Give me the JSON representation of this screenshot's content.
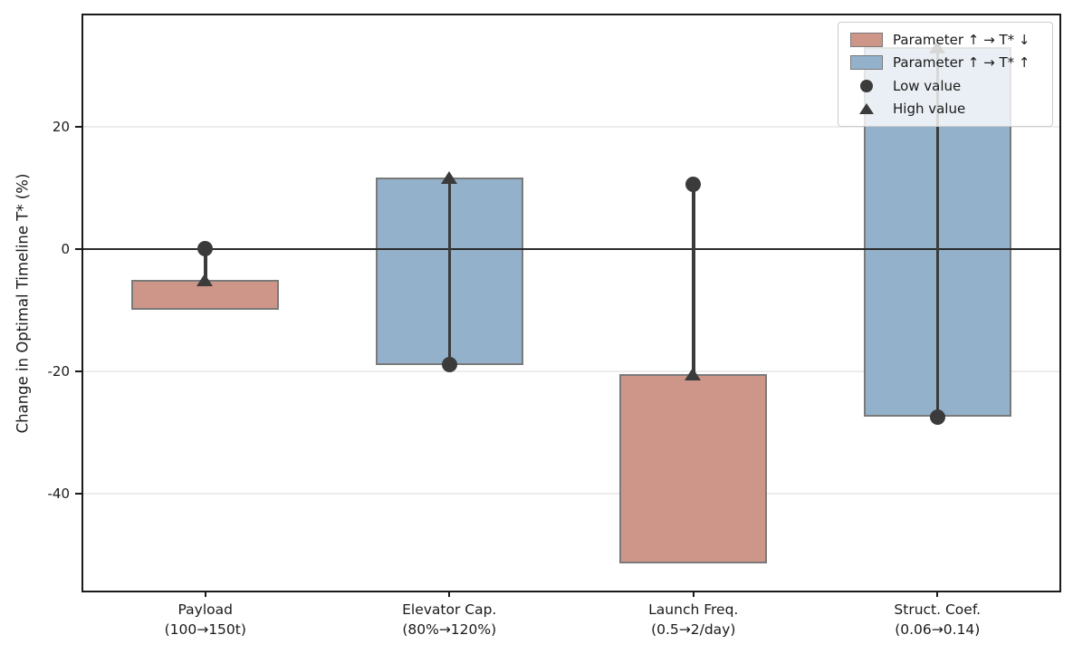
{
  "chart_data": {
    "type": "bar",
    "title": "",
    "ylabel": "Change in Optimal Timeline T* (%)",
    "ylim": [
      -55.9,
      38.2
    ],
    "yticks": [
      20,
      0,
      -20,
      -40
    ],
    "grid": "horizontal-light",
    "zero_line": true,
    "legend_position": "upper-right",
    "colors": {
      "decrease": "#CE9688",
      "increase": "#94B1CB",
      "bar_edge": "#7a7a7a",
      "marker": "#3b3b3b"
    },
    "categories": [
      {
        "name": "Payload",
        "range_label": "(100→150t)",
        "direction": "decrease",
        "bar_top": -5,
        "bar_bottom": -10,
        "low_value_change_pct": 0,
        "high_value_change_pct": -5
      },
      {
        "name": "Elevator Cap.",
        "range_label": "(80%→120%)",
        "direction": "increase",
        "bar_top": 11.7,
        "bar_bottom": -19,
        "low_value_change_pct": -19,
        "high_value_change_pct": 11.7
      },
      {
        "name": "Launch Freq.",
        "range_label": "(0.5→2/day)",
        "direction": "decrease",
        "bar_top": -20.5,
        "bar_bottom": -51.5,
        "low_value_change_pct": 10.5,
        "high_value_change_pct": -20.5
      },
      {
        "name": "Struct. Coef.",
        "range_label": "(0.06→0.14)",
        "direction": "increase",
        "bar_top": 33,
        "bar_bottom": -27.5,
        "low_value_change_pct": -27.5,
        "high_value_change_pct": 33
      }
    ],
    "legend": [
      {
        "swatch": "patch-decrease",
        "label": "Parameter ↑ → T* ↓"
      },
      {
        "swatch": "patch-increase",
        "label": "Parameter ↑ → T* ↑"
      },
      {
        "swatch": "marker-circle",
        "label": "Low value"
      },
      {
        "swatch": "marker-triangle",
        "label": "High value"
      }
    ]
  }
}
